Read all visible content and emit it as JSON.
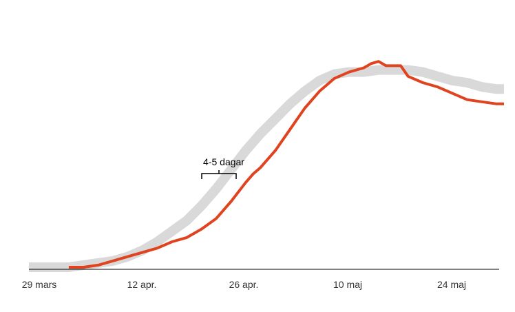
{
  "chart_data": {
    "type": "line",
    "title": "",
    "xlabel": "",
    "ylabel": "",
    "x_ticks": [
      "29 mars",
      "12 apr.",
      "26 apr.",
      "10 maj",
      "24 maj"
    ],
    "x_range_days": [
      0,
      63
    ],
    "y_range": [
      0,
      100
    ],
    "grid": false,
    "legend": "none",
    "series": [
      {
        "color": "#d9d9d9",
        "style": "thick",
        "points": [
          [
            0,
            0
          ],
          [
            4,
            0
          ],
          [
            6,
            1
          ],
          [
            8,
            2
          ],
          [
            10,
            3
          ],
          [
            12,
            5
          ],
          [
            14,
            8
          ],
          [
            16,
            12
          ],
          [
            18,
            17
          ],
          [
            20,
            22
          ],
          [
            22,
            29
          ],
          [
            24,
            37
          ],
          [
            26,
            46
          ],
          [
            28,
            55
          ],
          [
            30,
            63
          ],
          [
            32,
            70
          ],
          [
            34,
            77
          ],
          [
            36,
            83
          ],
          [
            38,
            88
          ],
          [
            40,
            91
          ],
          [
            42,
            92
          ],
          [
            44,
            92
          ],
          [
            46,
            93
          ],
          [
            48,
            93
          ],
          [
            50,
            93
          ],
          [
            52,
            92
          ],
          [
            54,
            90
          ],
          [
            56,
            88
          ],
          [
            58,
            87
          ],
          [
            60,
            85
          ],
          [
            62,
            84
          ],
          [
            63,
            84
          ]
        ]
      },
      {
        "color": "#e0431f",
        "style": "thin",
        "points": [
          [
            4,
            0
          ],
          [
            6,
            0
          ],
          [
            8,
            1
          ],
          [
            10,
            3
          ],
          [
            12,
            5
          ],
          [
            14,
            7
          ],
          [
            16,
            9
          ],
          [
            18,
            12
          ],
          [
            20,
            14
          ],
          [
            22,
            18
          ],
          [
            24,
            23
          ],
          [
            26,
            31
          ],
          [
            28,
            40
          ],
          [
            29,
            44
          ],
          [
            30,
            47
          ],
          [
            32,
            55
          ],
          [
            34,
            65
          ],
          [
            35,
            70
          ],
          [
            36,
            75
          ],
          [
            38,
            83
          ],
          [
            40,
            89
          ],
          [
            42,
            92
          ],
          [
            44,
            94
          ],
          [
            45,
            96
          ],
          [
            46,
            97
          ],
          [
            47,
            95
          ],
          [
            48,
            95
          ],
          [
            49,
            95
          ],
          [
            50,
            90
          ],
          [
            52,
            87
          ],
          [
            54,
            85
          ],
          [
            56,
            82
          ],
          [
            58,
            79
          ],
          [
            60,
            78
          ],
          [
            62,
            77
          ],
          [
            63,
            77
          ]
        ]
      }
    ],
    "annotation": {
      "text": "4-5 dagar",
      "from_day": 23,
      "to_day": 27.5,
      "y": 48
    }
  }
}
